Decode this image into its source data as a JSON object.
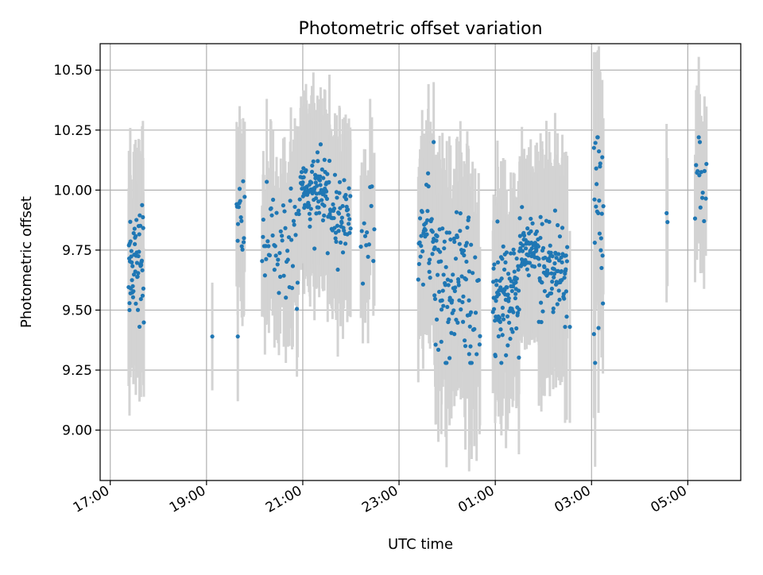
{
  "chart_data": {
    "type": "scatter",
    "title": "Photometric offset variation",
    "xlabel": "UTC time",
    "ylabel": "Photometric offset",
    "xlim_hours": [
      16.79,
      30.1
    ],
    "ylim": [
      8.79,
      10.61
    ],
    "x_ticks": [
      {
        "h": 17,
        "label": "17:00"
      },
      {
        "h": 19,
        "label": "19:00"
      },
      {
        "h": 21,
        "label": "21:00"
      },
      {
        "h": 23,
        "label": "23:00"
      },
      {
        "h": 25,
        "label": "01:00"
      },
      {
        "h": 27,
        "label": "03:00"
      },
      {
        "h": 29,
        "label": "05:00"
      }
    ],
    "y_ticks": [
      {
        "v": 9.0,
        "label": "9.00"
      },
      {
        "v": 9.25,
        "label": "9.25"
      },
      {
        "v": 9.5,
        "label": "9.50"
      },
      {
        "v": 9.75,
        "label": "9.75"
      },
      {
        "v": 10.0,
        "label": "10.00"
      },
      {
        "v": 10.25,
        "label": "10.25"
      },
      {
        "v": 10.5,
        "label": "10.50"
      }
    ],
    "grid": true,
    "colors": {
      "points": "#1f77b4",
      "errorbars": "#d3d3d3",
      "grid": "#b0b0b0"
    },
    "clusters": [
      {
        "t0": 17.38,
        "t1": 17.7,
        "n": 55,
        "mean": 9.72,
        "sd": 0.12,
        "err": 0.33
      },
      {
        "t0": 19.12,
        "t1": 19.14,
        "n": 1,
        "mean": 9.39,
        "sd": 0.0,
        "err": 0.25
      },
      {
        "t0": 19.62,
        "t1": 19.8,
        "n": 16,
        "mean": 9.86,
        "sd": 0.1,
        "err": 0.3
      },
      {
        "t0": 20.15,
        "t1": 20.95,
        "n": 55,
        "mean": 9.78,
        "sd": 0.12,
        "err": 0.3
      },
      {
        "t0": 20.95,
        "t1": 21.5,
        "n": 90,
        "mean": 10.0,
        "sd": 0.07,
        "err": 0.3
      },
      {
        "t0": 21.5,
        "t1": 22.0,
        "n": 60,
        "mean": 9.9,
        "sd": 0.08,
        "err": 0.3
      },
      {
        "t0": 22.2,
        "t1": 22.5,
        "n": 14,
        "mean": 9.82,
        "sd": 0.12,
        "err": 0.3
      },
      {
        "t0": 23.4,
        "t1": 23.75,
        "n": 40,
        "mean": 9.8,
        "sd": 0.12,
        "err": 0.35
      },
      {
        "t0": 23.75,
        "t1": 24.5,
        "n": 90,
        "mean": 9.62,
        "sd": 0.18,
        "err": 0.35
      },
      {
        "t0": 24.45,
        "t1": 24.7,
        "n": 14,
        "mean": 9.45,
        "sd": 0.18,
        "err": 0.4
      },
      {
        "t0": 24.95,
        "t1": 25.5,
        "n": 95,
        "mean": 9.58,
        "sd": 0.12,
        "err": 0.33
      },
      {
        "t0": 25.5,
        "t1": 25.9,
        "n": 60,
        "mean": 9.74,
        "sd": 0.06,
        "err": 0.3
      },
      {
        "t0": 25.9,
        "t1": 26.5,
        "n": 90,
        "mean": 9.68,
        "sd": 0.11,
        "err": 0.35
      },
      {
        "t0": 27.05,
        "t1": 27.25,
        "n": 26,
        "mean": 9.9,
        "sd": 0.22,
        "err": 0.35
      },
      {
        "t0": 28.55,
        "t1": 28.6,
        "n": 2,
        "mean": 9.88,
        "sd": 0.01,
        "err": 0.3
      },
      {
        "t0": 29.15,
        "t1": 29.4,
        "n": 14,
        "mean": 10.08,
        "sd": 0.08,
        "err": 0.3
      }
    ],
    "single_points": [
      {
        "t": 17.4,
        "y": 9.5,
        "err": 0.44
      },
      {
        "t": 17.42,
        "y": 9.57,
        "err": 0.35
      },
      {
        "t": 19.65,
        "y": 9.39,
        "err": 0.27
      },
      {
        "t": 24.05,
        "y": 9.3,
        "err": 0.28
      },
      {
        "t": 24.15,
        "y": 9.4,
        "err": 0.3
      },
      {
        "t": 26.45,
        "y": 9.43,
        "err": 0.4
      },
      {
        "t": 26.55,
        "y": 9.43,
        "err": 0.4
      },
      {
        "t": 27.05,
        "y": 9.4,
        "err": 0.35
      },
      {
        "t": 23.72,
        "y": 10.2,
        "err": 0.25
      },
      {
        "t": 29.25,
        "y": 10.2,
        "err": 0.2
      }
    ]
  }
}
